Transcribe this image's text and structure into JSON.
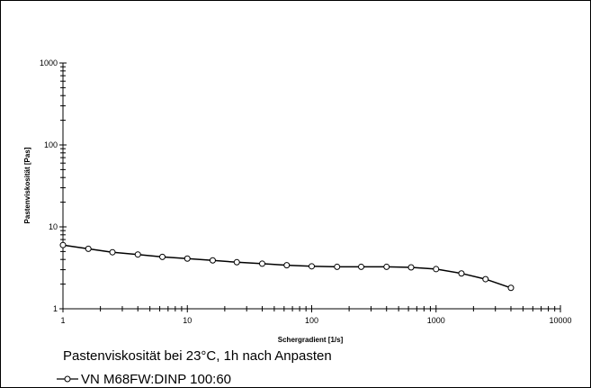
{
  "chart_data": {
    "type": "line",
    "xscale": "log",
    "yscale": "log",
    "xlim": [
      1,
      10000
    ],
    "ylim": [
      1,
      1000
    ],
    "x_ticks": [
      "1",
      "10",
      "100",
      "1000",
      "10000"
    ],
    "y_ticks": [
      "1",
      "10",
      "100",
      "1000"
    ],
    "xlabel": "Schergradient  [1/s]",
    "ylabel": "Pastenviskosität  [Pas]",
    "caption": "Pastenviskosität bei 23°C, 1h nach Anpasten",
    "grid": false,
    "legend_position": "bottom-left",
    "line_color": "#000000",
    "marker": "open-circle",
    "series": [
      {
        "name": "VN M68FW:DINP 100:60",
        "x": [
          1,
          1.6,
          2.5,
          4,
          6.3,
          10,
          16,
          25,
          40,
          63,
          100,
          160,
          250,
          400,
          630,
          1000,
          1600,
          2500,
          4000
        ],
        "y": [
          6.0,
          5.4,
          4.9,
          4.6,
          4.3,
          4.1,
          3.9,
          3.7,
          3.55,
          3.4,
          3.3,
          3.25,
          3.25,
          3.25,
          3.2,
          3.05,
          2.7,
          2.3,
          1.8
        ]
      }
    ]
  }
}
